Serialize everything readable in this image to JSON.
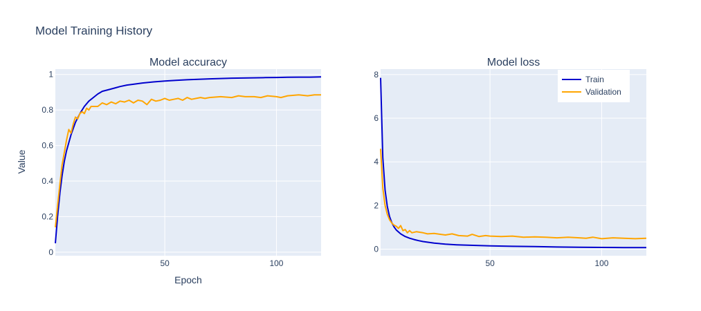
{
  "figure": {
    "title": "Model Training History",
    "xlabel": "Epoch",
    "ylabel": "Value"
  },
  "colors": {
    "train": "#0000cd",
    "validation": "#ffa500",
    "plot_bg": "#e5ecf6",
    "grid": "#ffffff",
    "text": "#2a3f5f"
  },
  "legend": {
    "position": "top-right of Model loss panel",
    "items": [
      "Train",
      "Validation"
    ]
  },
  "chart_data": [
    {
      "type": "line",
      "title": "Model accuracy",
      "xlabel": "Epoch",
      "ylabel": "Value",
      "xlim": [
        1,
        120
      ],
      "ylim": [
        -0.02,
        1.03
      ],
      "xticks": [
        50,
        100
      ],
      "yticks": [
        0,
        0.2,
        0.4,
        0.6,
        0.8,
        1
      ],
      "ytick_labels": [
        "0",
        "0.2",
        "0.4",
        "0.6",
        "0.8",
        "1"
      ],
      "grid": true,
      "series": [
        {
          "name": "Train",
          "x": [
            1,
            2,
            3,
            4,
            5,
            6,
            8,
            10,
            12,
            14,
            16,
            18,
            20,
            22,
            25,
            28,
            30,
            33,
            36,
            40,
            45,
            50,
            55,
            60,
            65,
            70,
            75,
            80,
            85,
            90,
            95,
            100,
            105,
            110,
            115,
            120
          ],
          "values": [
            0.05,
            0.2,
            0.33,
            0.43,
            0.51,
            0.57,
            0.66,
            0.73,
            0.78,
            0.82,
            0.85,
            0.87,
            0.89,
            0.905,
            0.915,
            0.925,
            0.932,
            0.94,
            0.945,
            0.952,
            0.958,
            0.963,
            0.967,
            0.97,
            0.973,
            0.975,
            0.977,
            0.979,
            0.98,
            0.981,
            0.982,
            0.983,
            0.984,
            0.985,
            0.985,
            0.986
          ]
        },
        {
          "name": "Validation",
          "x": [
            1,
            2,
            3,
            4,
            5,
            6,
            7,
            8,
            9,
            10,
            11,
            12,
            13,
            14,
            15,
            16,
            17,
            18,
            20,
            22,
            24,
            26,
            28,
            30,
            32,
            34,
            36,
            38,
            40,
            42,
            44,
            46,
            48,
            50,
            52,
            54,
            56,
            58,
            60,
            62,
            64,
            66,
            68,
            70,
            75,
            80,
            83,
            86,
            90,
            93,
            96,
            100,
            102,
            105,
            110,
            114,
            117,
            120
          ],
          "values": [
            0.14,
            0.26,
            0.38,
            0.49,
            0.56,
            0.63,
            0.69,
            0.67,
            0.72,
            0.76,
            0.75,
            0.78,
            0.79,
            0.78,
            0.81,
            0.8,
            0.82,
            0.82,
            0.82,
            0.84,
            0.83,
            0.845,
            0.835,
            0.85,
            0.845,
            0.855,
            0.84,
            0.855,
            0.85,
            0.83,
            0.86,
            0.85,
            0.855,
            0.865,
            0.855,
            0.86,
            0.865,
            0.855,
            0.87,
            0.86,
            0.865,
            0.87,
            0.865,
            0.87,
            0.875,
            0.87,
            0.88,
            0.875,
            0.875,
            0.87,
            0.88,
            0.875,
            0.87,
            0.88,
            0.885,
            0.88,
            0.885,
            0.885
          ]
        }
      ]
    },
    {
      "type": "line",
      "title": "Model loss",
      "xlabel": "",
      "ylabel": "",
      "xlim": [
        1,
        120
      ],
      "ylim": [
        -0.3,
        8.25
      ],
      "xticks": [
        50,
        100
      ],
      "yticks": [
        0,
        2,
        4,
        6,
        8
      ],
      "ytick_labels": [
        "0",
        "2",
        "4",
        "6",
        "8"
      ],
      "grid": true,
      "series": [
        {
          "name": "Train",
          "x": [
            1,
            2,
            3,
            4,
            5,
            6,
            7,
            8,
            10,
            12,
            14,
            16,
            18,
            20,
            25,
            30,
            35,
            40,
            50,
            60,
            70,
            80,
            90,
            100,
            110,
            120
          ],
          "values": [
            7.85,
            4.2,
            2.7,
            1.95,
            1.5,
            1.22,
            1.02,
            0.88,
            0.7,
            0.58,
            0.5,
            0.44,
            0.39,
            0.35,
            0.28,
            0.23,
            0.2,
            0.18,
            0.15,
            0.13,
            0.12,
            0.1,
            0.09,
            0.08,
            0.075,
            0.07
          ]
        },
        {
          "name": "Validation",
          "x": [
            1,
            2,
            3,
            4,
            5,
            6,
            7,
            8,
            9,
            10,
            11,
            12,
            13,
            14,
            15,
            17,
            20,
            22,
            25,
            28,
            30,
            33,
            36,
            40,
            42,
            45,
            48,
            50,
            55,
            60,
            65,
            70,
            75,
            80,
            85,
            90,
            93,
            96,
            100,
            105,
            110,
            115,
            120
          ],
          "values": [
            4.6,
            2.8,
            2.0,
            1.6,
            1.35,
            1.2,
            1.1,
            1.05,
            0.95,
            1.08,
            0.85,
            0.9,
            0.75,
            0.85,
            0.75,
            0.8,
            0.75,
            0.7,
            0.72,
            0.68,
            0.65,
            0.7,
            0.62,
            0.6,
            0.68,
            0.58,
            0.62,
            0.6,
            0.58,
            0.6,
            0.55,
            0.56,
            0.55,
            0.52,
            0.55,
            0.52,
            0.5,
            0.55,
            0.48,
            0.52,
            0.5,
            0.48,
            0.5
          ]
        }
      ]
    }
  ]
}
